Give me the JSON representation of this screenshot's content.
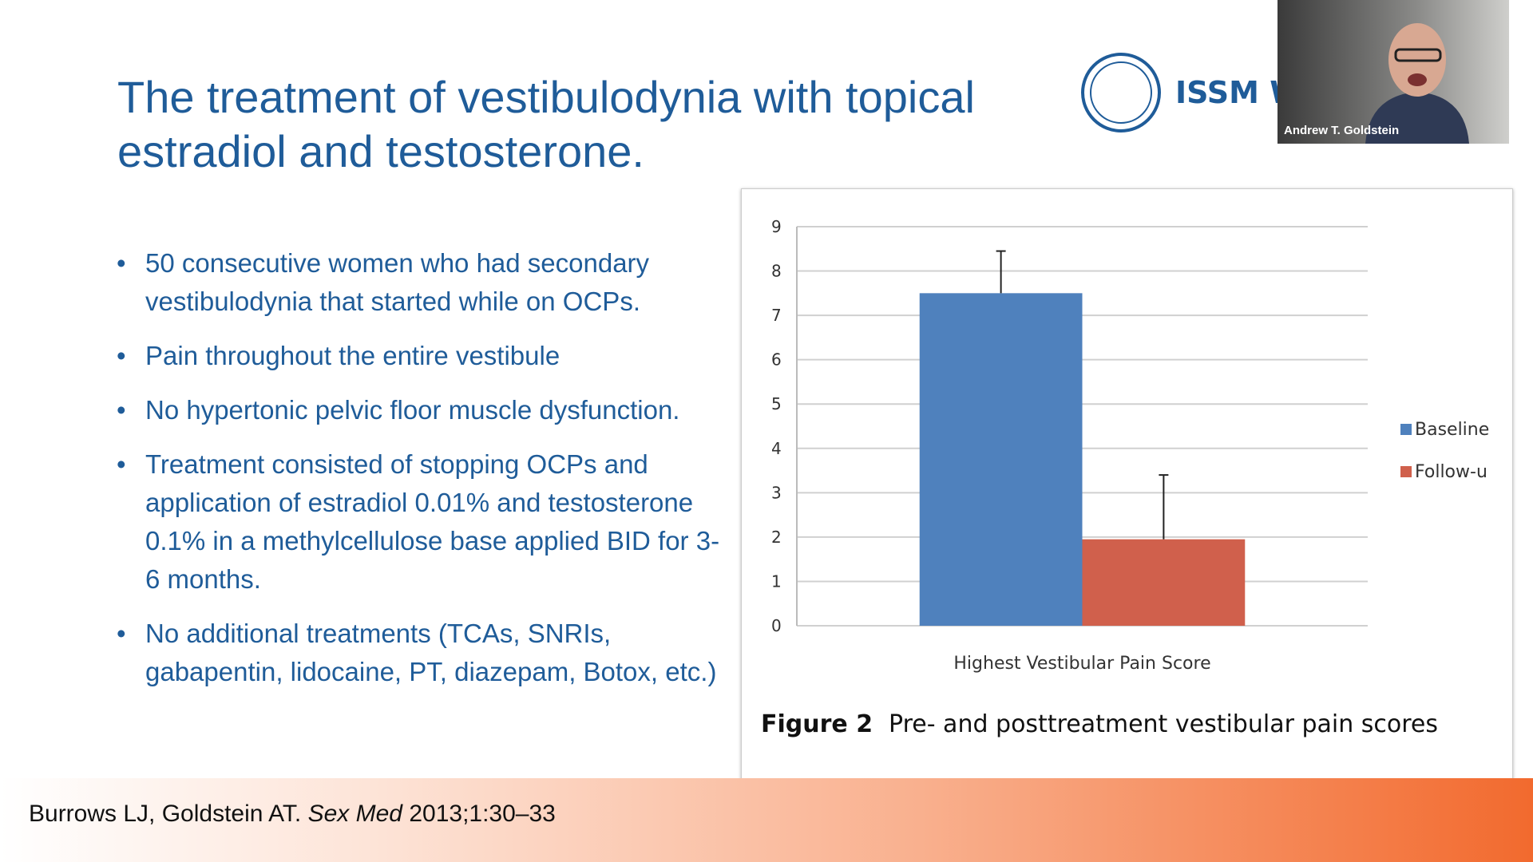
{
  "header": {
    "title": "The treatment of vestibulodynia with topical estradiol and testosterone."
  },
  "logo": {
    "text": "ISSM W"
  },
  "webcam": {
    "name": "Andrew T. Goldstein"
  },
  "bullets": [
    "50 consecutive women who had secondary vestibulodynia that started while on OCPs.",
    "Pain throughout the entire vestibule",
    "No hypertonic pelvic floor muscle dysfunction.",
    "Treatment consisted of stopping OCPs and application of estradiol 0.01% and testosterone 0.1% in a methylcellulose base applied BID for 3-6 months.",
    "No additional treatments (TCAs, SNRIs, gabapentin, lidocaine, PT, diazepam, Botox, etc.)"
  ],
  "citation": {
    "authors": "Burrows LJ, Goldstein AT.",
    "journal": "Sex Med",
    "details": "2013;1:30–33"
  },
  "chart_data": {
    "type": "bar",
    "categories": [
      "Highest Vestibular Pain Score"
    ],
    "series": [
      {
        "name": "Baseline",
        "color": "#4f81bd",
        "values": [
          7.5
        ],
        "errors": [
          0.95
        ]
      },
      {
        "name": "Follow-u",
        "color": "#d0604c",
        "values": [
          1.95
        ],
        "errors": [
          1.45
        ]
      }
    ],
    "ylim": [
      0,
      9
    ],
    "yticks": [
      0,
      1,
      2,
      3,
      4,
      5,
      6,
      7,
      8,
      9
    ],
    "grid": true,
    "legend": "right",
    "caption": {
      "label": "Figure 2",
      "text": "Pre- and posttreatment vestibular pain scores"
    }
  }
}
